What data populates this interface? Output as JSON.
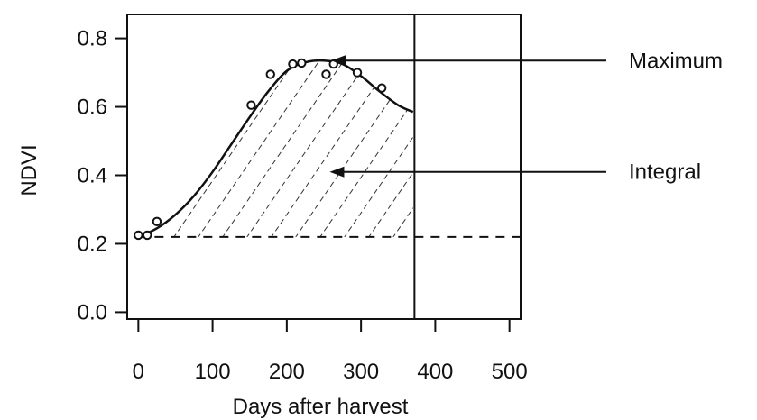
{
  "chart_data": {
    "type": "scatter",
    "xlabel": "Days after harvest",
    "ylabel": "NDVI",
    "xlim": [
      -15,
      515
    ],
    "ylim": [
      -0.02,
      0.87
    ],
    "x_ticks": [
      0,
      100,
      200,
      300,
      400,
      500
    ],
    "x_tick_labels": [
      "0",
      "100",
      "200",
      "300",
      "400",
      "500"
    ],
    "y_ticks": [
      0.0,
      0.2,
      0.4,
      0.6,
      0.8
    ],
    "y_tick_labels": [
      "0.0",
      "0.2",
      "0.4",
      "0.6",
      "0.8"
    ],
    "grid": false,
    "legend": "none",
    "points": {
      "x": [
        0,
        12,
        25,
        152,
        178,
        208,
        220,
        253,
        263,
        295,
        328
      ],
      "y": [
        0.225,
        0.225,
        0.265,
        0.605,
        0.695,
        0.725,
        0.728,
        0.695,
        0.725,
        0.7,
        0.655
      ]
    },
    "fitted_curve": {
      "x": [
        0,
        25,
        50,
        75,
        100,
        125,
        150,
        175,
        200,
        225,
        250,
        275,
        300,
        325,
        350,
        370
      ],
      "y": [
        0.22,
        0.245,
        0.285,
        0.34,
        0.41,
        0.49,
        0.57,
        0.645,
        0.705,
        0.73,
        0.735,
        0.725,
        0.69,
        0.645,
        0.605,
        0.585
      ]
    },
    "baseline_y": 0.22,
    "cutoff_x": 372,
    "annotations": [
      {
        "label": "Maximum",
        "arrow_to_x": 255,
        "arrow_to_y": 0.735
      },
      {
        "label": "Integral",
        "arrow_to_x": 253,
        "arrow_to_y": 0.41
      }
    ],
    "colors": {
      "foreground": "#111111",
      "background": "#ffffff"
    }
  }
}
